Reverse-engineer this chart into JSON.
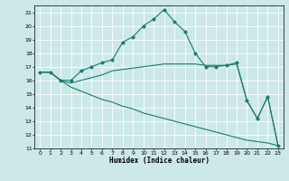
{
  "xlabel": "Humidex (Indice chaleur)",
  "bg_color": "#cce8e8",
  "grid_color": "#ffffff",
  "line_color": "#1a7a6e",
  "xlim": [
    -0.5,
    23.5
  ],
  "ylim": [
    11,
    21.5
  ],
  "yticks": [
    11,
    12,
    13,
    14,
    15,
    16,
    17,
    18,
    19,
    20,
    21
  ],
  "xticks": [
    0,
    1,
    2,
    3,
    4,
    5,
    6,
    7,
    8,
    9,
    10,
    11,
    12,
    13,
    14,
    15,
    16,
    17,
    18,
    19,
    20,
    21,
    22,
    23
  ],
  "lines": [
    {
      "x": [
        0,
        1,
        2,
        3,
        4,
        5,
        6,
        7,
        8,
        9,
        10,
        11,
        12,
        13,
        14,
        15,
        16,
        17,
        18,
        19,
        20,
        21,
        22,
        23
      ],
      "y": [
        16.6,
        16.6,
        16.0,
        16.0,
        16.7,
        17.0,
        17.3,
        17.5,
        18.8,
        19.2,
        20.0,
        20.5,
        21.2,
        20.3,
        19.6,
        18.0,
        17.0,
        17.0,
        17.1,
        17.3,
        14.5,
        13.2,
        14.8,
        11.2
      ],
      "has_markers": true
    },
    {
      "x": [
        0,
        1,
        2,
        3,
        4,
        5,
        6,
        7,
        8,
        9,
        10,
        11,
        12,
        13,
        14,
        15,
        16,
        17,
        18,
        19,
        20,
        21,
        22,
        23
      ],
      "y": [
        16.6,
        16.6,
        16.0,
        15.8,
        16.0,
        16.2,
        16.4,
        16.7,
        16.8,
        16.9,
        17.0,
        17.1,
        17.2,
        17.2,
        17.2,
        17.2,
        17.1,
        17.1,
        17.1,
        17.2,
        14.5,
        13.2,
        14.8,
        11.2
      ],
      "has_markers": false
    },
    {
      "x": [
        0,
        1,
        2,
        3,
        4,
        5,
        6,
        7,
        8,
        9,
        10,
        11,
        12,
        13,
        14,
        15,
        16,
        17,
        18,
        19,
        20,
        21,
        22,
        23
      ],
      "y": [
        16.6,
        16.6,
        16.0,
        15.5,
        15.2,
        14.9,
        14.6,
        14.4,
        14.1,
        13.9,
        13.6,
        13.4,
        13.2,
        13.0,
        12.8,
        12.6,
        12.4,
        12.2,
        12.0,
        11.8,
        11.6,
        11.5,
        11.4,
        11.2
      ],
      "has_markers": false
    }
  ]
}
